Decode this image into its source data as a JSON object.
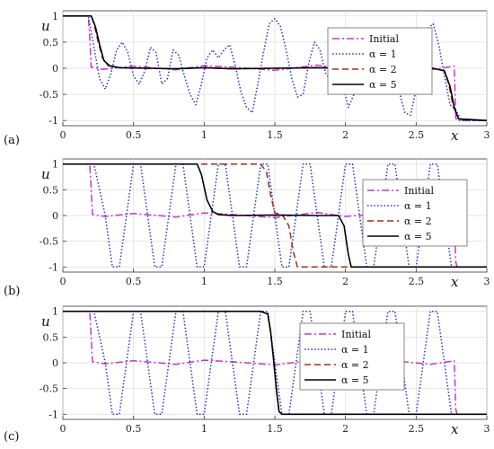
{
  "chart_data": [
    {
      "panel": "(a)",
      "type": "line",
      "xlabel": "x",
      "ylabel": "u",
      "xlim": [
        0,
        3
      ],
      "ylim": [
        -1.1,
        1.1
      ],
      "xticks": [
        "0",
        "0.5",
        "1",
        "1.5",
        "2",
        "2.5",
        "3"
      ],
      "yticks": [
        "-1",
        "-0.5",
        "0",
        "0.5",
        "1"
      ],
      "grid": true,
      "legend_position": "right",
      "series": [
        {
          "name": "Initial",
          "style": "dashdot",
          "color": "#cc33cc",
          "x": [
            0,
            0.18,
            0.19,
            0.2,
            0.28,
            0.5,
            0.8,
            1.0,
            1.2,
            1.5,
            1.8,
            2.0,
            2.3,
            2.6,
            2.77,
            2.78,
            2.79,
            3.0
          ],
          "y": [
            1,
            1,
            0.6,
            0.02,
            -0.02,
            0.04,
            -0.03,
            0.05,
            0.02,
            -0.04,
            0.06,
            -0.02,
            0.05,
            -0.03,
            0.04,
            -0.95,
            -1,
            -1
          ]
        },
        {
          "name": "α = 1",
          "style": "dotted",
          "color": "#2233cc",
          "x": [
            0,
            0.18,
            0.26,
            0.3,
            0.34,
            0.38,
            0.42,
            0.46,
            0.5,
            0.54,
            0.58,
            0.62,
            0.66,
            0.7,
            0.74,
            0.78,
            0.82,
            0.86,
            0.9,
            0.94,
            0.98,
            1.02,
            1.06,
            1.1,
            1.14,
            1.18,
            1.22,
            1.26,
            1.3,
            1.34,
            1.38,
            1.42,
            1.46,
            1.5,
            1.54,
            1.58,
            1.62,
            1.66,
            1.7,
            1.74,
            1.78,
            1.82,
            1.86,
            1.9,
            1.94,
            1.98,
            2.02,
            2.06,
            2.1,
            2.14,
            2.18,
            2.22,
            2.26,
            2.3,
            2.34,
            2.38,
            2.42,
            2.46,
            2.5,
            2.54,
            2.58,
            2.62,
            2.66,
            2.7,
            2.74,
            2.78,
            2.82,
            3.0
          ],
          "y": [
            1,
            1,
            -0.2,
            -0.4,
            -0.1,
            0.35,
            0.5,
            0.3,
            -0.15,
            -0.3,
            -0.05,
            0.4,
            0.3,
            -0.3,
            -0.2,
            0.35,
            0.25,
            -0.15,
            -0.5,
            -0.7,
            -0.3,
            0.2,
            0.35,
            0.2,
            0.35,
            0.45,
            0.05,
            -0.45,
            -0.75,
            -0.85,
            -0.3,
            0.3,
            0.85,
            0.95,
            0.8,
            0.35,
            -0.2,
            -0.55,
            -0.5,
            0.1,
            0.5,
            0.35,
            -0.1,
            -0.25,
            -0.05,
            -0.3,
            -0.75,
            -0.5,
            -0.1,
            0.1,
            0.35,
            0.55,
            0.75,
            0.6,
            0.1,
            -0.45,
            -0.85,
            -0.9,
            -0.4,
            0.35,
            0.75,
            0.85,
            0.45,
            -0.15,
            -0.7,
            -0.8,
            -1,
            -1
          ]
        },
        {
          "name": "α = 2",
          "style": "dashed",
          "color": "#993311",
          "x": [
            0,
            0.2,
            0.22,
            0.25,
            0.28,
            0.32,
            0.4,
            0.6,
            0.8,
            1.0,
            1.2,
            1.5,
            1.8,
            2.0,
            2.3,
            2.6,
            2.7,
            2.73,
            2.76,
            2.8,
            3.0
          ],
          "y": [
            1,
            1,
            0.85,
            0.5,
            0.2,
            0.05,
            0.01,
            0,
            -0.01,
            0.01,
            -0.01,
            0,
            0.01,
            0,
            0,
            0.01,
            -0.05,
            -0.3,
            -0.7,
            -0.97,
            -1
          ]
        },
        {
          "name": "α = 5",
          "style": "solid",
          "color": "#000000",
          "x": [
            0,
            0.2,
            0.23,
            0.26,
            0.29,
            0.33,
            0.4,
            0.6,
            0.8,
            1.0,
            1.2,
            1.5,
            1.8,
            2.0,
            2.3,
            2.6,
            2.7,
            2.74,
            2.77,
            2.8,
            3.0
          ],
          "y": [
            1,
            1,
            0.8,
            0.45,
            0.15,
            0.05,
            0.01,
            0,
            -0.01,
            0.01,
            -0.01,
            0,
            0.01,
            0,
            0,
            0.01,
            -0.05,
            -0.35,
            -0.75,
            -0.97,
            -1
          ]
        }
      ]
    },
    {
      "panel": "(b)",
      "type": "line",
      "xlabel": "x",
      "ylabel": "u",
      "xlim": [
        0,
        3
      ],
      "ylim": [
        -1.1,
        1.1
      ],
      "xticks": [
        "0",
        "0.5",
        "1",
        "1.5",
        "2",
        "2.5",
        "3"
      ],
      "yticks": [
        "-1",
        "-0.5",
        "0",
        "0.5",
        "1"
      ],
      "grid": true,
      "legend_position": "right",
      "series": [
        {
          "name": "Initial",
          "style": "dashdot",
          "color": "#cc33cc",
          "x": [
            0,
            0.19,
            0.2,
            0.21,
            0.3,
            0.5,
            0.8,
            1.0,
            1.2,
            1.5,
            1.8,
            2.0,
            2.3,
            2.6,
            2.77,
            2.78,
            2.79,
            3.0
          ],
          "y": [
            1,
            1,
            0.5,
            0.02,
            -0.02,
            0.04,
            -0.03,
            0.05,
            0.02,
            -0.04,
            0.06,
            -0.02,
            0.05,
            -0.03,
            0.04,
            -0.9,
            -1,
            -1
          ]
        },
        {
          "name": "α = 1",
          "style": "dotted",
          "color": "#2233cc",
          "x": [
            0,
            0.19,
            0.22,
            0.3,
            0.35,
            0.4,
            0.45,
            0.5,
            0.55,
            0.6,
            0.65,
            0.7,
            0.75,
            0.8,
            0.85,
            0.9,
            0.95,
            1.0,
            1.05,
            1.1,
            1.15,
            1.2,
            1.25,
            1.3,
            1.35,
            1.4,
            1.45,
            1.5,
            1.55,
            1.6,
            1.65,
            1.7,
            1.75,
            1.8,
            1.85,
            1.9,
            1.95,
            2.0,
            2.05,
            2.1,
            2.15,
            2.2,
            2.25,
            2.3,
            2.35,
            2.4,
            2.45,
            2.5,
            2.55,
            2.6,
            2.65,
            2.7,
            2.75,
            2.8,
            3.0
          ],
          "y": [
            1,
            1,
            1,
            0,
            -1,
            -1,
            0,
            1,
            1,
            0,
            -1,
            -1,
            0,
            1,
            1,
            0,
            -1,
            -1,
            0,
            1,
            1,
            0,
            -1,
            -1,
            0,
            1,
            1,
            0,
            -1,
            -1,
            0,
            1,
            1,
            0,
            -1,
            -1,
            0,
            1,
            1,
            0,
            -1,
            -1,
            0,
            1,
            1,
            0,
            -1,
            -1,
            0,
            1,
            1,
            0,
            -1,
            -1,
            -1
          ]
        },
        {
          "name": "α = 2",
          "style": "dashed",
          "color": "#993311",
          "x": [
            0,
            0.95,
            0.97,
            1.02,
            1.4,
            1.44,
            1.47,
            1.5,
            1.55,
            1.6,
            1.63,
            1.66,
            1.75,
            2.0,
            3.0
          ],
          "y": [
            1,
            1,
            1,
            1,
            1,
            0.85,
            0.4,
            0.05,
            0.02,
            -0.2,
            -0.7,
            -1,
            -1,
            -1,
            -1
          ]
        },
        {
          "name": "α = 5",
          "style": "solid",
          "color": "#000000",
          "x": [
            0,
            0.95,
            0.98,
            1.02,
            1.06,
            1.1,
            1.2,
            1.5,
            1.8,
            1.95,
            1.99,
            2.02,
            2.04,
            2.1,
            3.0
          ],
          "y": [
            1,
            1,
            0.8,
            0.3,
            0.08,
            0.02,
            0,
            0.01,
            0,
            0,
            -0.2,
            -0.75,
            -1,
            -1,
            -1
          ]
        }
      ]
    },
    {
      "panel": "(c)",
      "type": "line",
      "xlabel": "x",
      "ylabel": "u",
      "xlim": [
        0,
        3
      ],
      "ylim": [
        -1.1,
        1.1
      ],
      "xticks": [
        "0",
        "0.5",
        "1",
        "1.5",
        "2",
        "2.5",
        "3"
      ],
      "yticks": [
        "-1",
        "-0.5",
        "0",
        "0.5",
        "1"
      ],
      "grid": true,
      "legend_position": "right",
      "series": [
        {
          "name": "Initial",
          "style": "dashdot",
          "color": "#cc33cc",
          "x": [
            0,
            0.19,
            0.2,
            0.21,
            0.3,
            0.5,
            0.8,
            1.0,
            1.2,
            1.5,
            1.8,
            2.0,
            2.3,
            2.6,
            2.77,
            2.78,
            2.79,
            3.0
          ],
          "y": [
            1,
            1,
            0.5,
            0.02,
            -0.02,
            0.04,
            -0.03,
            0.05,
            0.02,
            -0.04,
            0.06,
            -0.02,
            0.05,
            -0.03,
            0.04,
            -0.9,
            -1,
            -1
          ]
        },
        {
          "name": "α = 1",
          "style": "dotted",
          "color": "#2233cc",
          "x": [
            0,
            0.19,
            0.22,
            0.3,
            0.35,
            0.4,
            0.45,
            0.5,
            0.55,
            0.6,
            0.65,
            0.7,
            0.75,
            0.8,
            0.85,
            0.9,
            0.95,
            1.0,
            1.05,
            1.1,
            1.15,
            1.2,
            1.25,
            1.3,
            1.35,
            1.4,
            1.45,
            1.5,
            1.55,
            1.6,
            1.65,
            1.7,
            1.75,
            1.8,
            1.85,
            1.9,
            1.95,
            2.0,
            2.05,
            2.1,
            2.15,
            2.2,
            2.25,
            2.3,
            2.35,
            2.4,
            2.45,
            2.5,
            2.55,
            2.6,
            2.65,
            2.7,
            2.75,
            2.8,
            3.0
          ],
          "y": [
            1,
            1,
            1,
            0,
            -1,
            -1,
            0,
            1,
            1,
            0,
            -1,
            -1,
            0,
            1,
            1,
            0,
            -1,
            -1,
            0,
            1,
            1,
            0,
            -1,
            -1,
            0,
            1,
            1,
            0,
            -1,
            -1,
            0,
            1,
            1,
            0,
            -1,
            -1,
            0,
            1,
            1,
            0,
            -1,
            -1,
            0,
            1,
            1,
            0,
            -1,
            -1,
            0,
            1,
            1,
            0,
            -1,
            -1,
            -1
          ]
        },
        {
          "name": "α = 2",
          "style": "dashed",
          "color": "#993311",
          "x": [
            0,
            1.4,
            1.45,
            1.47,
            1.49,
            1.51,
            1.53,
            1.55,
            3.0
          ],
          "y": [
            1,
            1,
            0.95,
            0.6,
            0.1,
            -0.5,
            -0.95,
            -1,
            -1
          ]
        },
        {
          "name": "α = 5",
          "style": "solid",
          "color": "#000000",
          "x": [
            0,
            1.4,
            1.45,
            1.47,
            1.49,
            1.51,
            1.53,
            1.55,
            3.0
          ],
          "y": [
            1,
            1,
            0.95,
            0.6,
            0.1,
            -0.5,
            -0.95,
            -1,
            -1
          ]
        }
      ]
    }
  ]
}
